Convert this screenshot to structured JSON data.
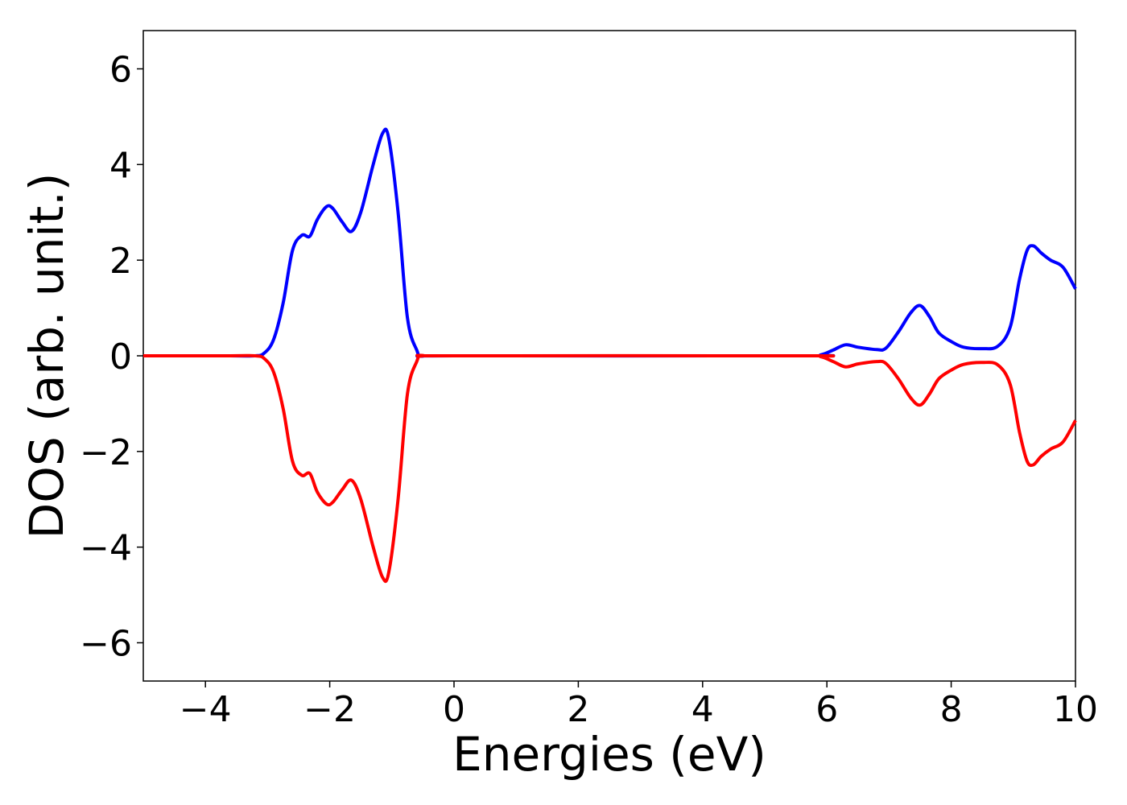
{
  "chart_data": {
    "type": "line",
    "title": "",
    "xlabel": "Energies (eV)",
    "ylabel": "DOS (arb. unit.)",
    "xlim": [
      -5,
      10
    ],
    "ylim": [
      -6.8,
      6.8
    ],
    "xticks": [
      -4,
      -2,
      0,
      2,
      4,
      6,
      8,
      10
    ],
    "yticks": [
      -6,
      -4,
      -2,
      0,
      2,
      4,
      6
    ],
    "xtick_labels": [
      "−4",
      "−2",
      "0",
      "2",
      "4",
      "6",
      "8",
      "10"
    ],
    "ytick_labels": [
      "−6",
      "−4",
      "−2",
      "0",
      "2",
      "4",
      "6"
    ],
    "grid": false,
    "legend": "none",
    "series": [
      {
        "color": "#0000ff",
        "points": [
          [
            -5,
            0
          ],
          [
            -3.6,
            0
          ],
          [
            -3.2,
            0.0
          ],
          [
            -3.05,
            0.06
          ],
          [
            -2.9,
            0.35
          ],
          [
            -2.75,
            1.1
          ],
          [
            -2.6,
            2.2
          ],
          [
            -2.45,
            2.52
          ],
          [
            -2.32,
            2.5
          ],
          [
            -2.2,
            2.85
          ],
          [
            -2.05,
            3.12
          ],
          [
            -1.95,
            3.08
          ],
          [
            -1.8,
            2.8
          ],
          [
            -1.65,
            2.6
          ],
          [
            -1.5,
            3.0
          ],
          [
            -1.3,
            4.0
          ],
          [
            -1.15,
            4.65
          ],
          [
            -1.05,
            4.55
          ],
          [
            -0.9,
            3.0
          ],
          [
            -0.75,
            0.8
          ],
          [
            -0.6,
            0.12
          ],
          [
            -0.5,
            0.0
          ],
          [
            0,
            0
          ],
          [
            5.6,
            0
          ],
          [
            5.9,
            0.02
          ],
          [
            6.1,
            0.12
          ],
          [
            6.3,
            0.23
          ],
          [
            6.5,
            0.18
          ],
          [
            6.8,
            0.13
          ],
          [
            6.95,
            0.16
          ],
          [
            7.15,
            0.5
          ],
          [
            7.35,
            0.9
          ],
          [
            7.5,
            1.05
          ],
          [
            7.65,
            0.82
          ],
          [
            7.8,
            0.48
          ],
          [
            8.0,
            0.3
          ],
          [
            8.2,
            0.18
          ],
          [
            8.5,
            0.15
          ],
          [
            8.75,
            0.2
          ],
          [
            8.95,
            0.6
          ],
          [
            9.1,
            1.6
          ],
          [
            9.22,
            2.2
          ],
          [
            9.32,
            2.3
          ],
          [
            9.45,
            2.15
          ],
          [
            9.6,
            2.0
          ],
          [
            9.8,
            1.85
          ],
          [
            10,
            1.4
          ]
        ]
      },
      {
        "color": "#ff0000",
        "points": [
          [
            -5,
            0
          ],
          [
            -3.6,
            0
          ],
          [
            -3.2,
            0.0
          ],
          [
            -3.05,
            -0.06
          ],
          [
            -2.9,
            -0.35
          ],
          [
            -2.75,
            -1.1
          ],
          [
            -2.6,
            -2.2
          ],
          [
            -2.45,
            -2.5
          ],
          [
            -2.32,
            -2.46
          ],
          [
            -2.2,
            -2.85
          ],
          [
            -2.05,
            -3.1
          ],
          [
            -1.95,
            -3.06
          ],
          [
            -1.8,
            -2.8
          ],
          [
            -1.65,
            -2.6
          ],
          [
            -1.5,
            -3.0
          ],
          [
            -1.3,
            -4.0
          ],
          [
            -1.15,
            -4.63
          ],
          [
            -1.05,
            -4.53
          ],
          [
            -0.9,
            -3.0
          ],
          [
            -0.75,
            -0.8
          ],
          [
            -0.6,
            -0.12
          ],
          [
            -0.5,
            0.0
          ],
          [
            0,
            0
          ],
          [
            5.6,
            0
          ],
          [
            5.9,
            -0.02
          ],
          [
            6.1,
            -0.12
          ],
          [
            6.3,
            -0.23
          ],
          [
            6.5,
            -0.17
          ],
          [
            6.8,
            -0.12
          ],
          [
            6.95,
            -0.16
          ],
          [
            7.15,
            -0.48
          ],
          [
            7.35,
            -0.88
          ],
          [
            7.5,
            -1.03
          ],
          [
            7.65,
            -0.8
          ],
          [
            7.8,
            -0.48
          ],
          [
            8.0,
            -0.3
          ],
          [
            8.2,
            -0.18
          ],
          [
            8.5,
            -0.14
          ],
          [
            8.75,
            -0.19
          ],
          [
            8.95,
            -0.6
          ],
          [
            9.1,
            -1.6
          ],
          [
            9.22,
            -2.2
          ],
          [
            9.32,
            -2.28
          ],
          [
            9.45,
            -2.1
          ],
          [
            9.6,
            -1.95
          ],
          [
            9.8,
            -1.8
          ],
          [
            10,
            -1.35
          ]
        ]
      }
    ]
  }
}
